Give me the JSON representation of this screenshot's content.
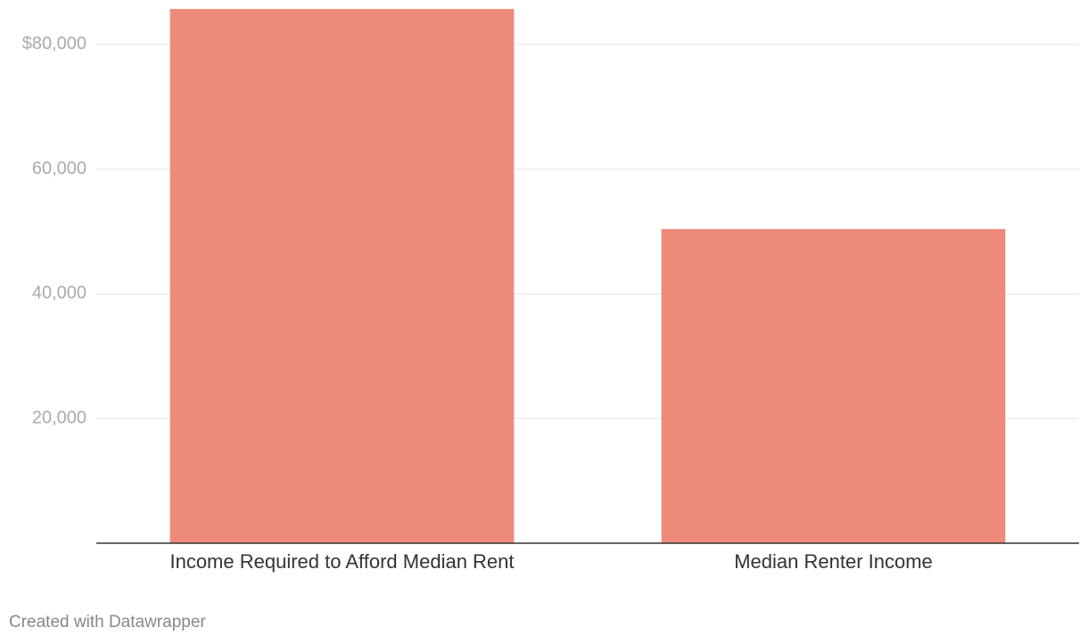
{
  "chart_data": {
    "type": "bar",
    "categories": [
      "Income Required to Afford Median Rent",
      "Median Renter Income"
    ],
    "values": [
      85700,
      50400
    ],
    "color": "#ed8a7a",
    "ylim": [
      0,
      86000
    ],
    "yticks": [
      {
        "value": 20000,
        "label": "20,000"
      },
      {
        "value": 40000,
        "label": "40,000"
      },
      {
        "value": 60000,
        "label": "60,000"
      },
      {
        "value": 80000,
        "label": "$80,000"
      }
    ],
    "grid": true,
    "credit": "Created with Datawrapper"
  }
}
